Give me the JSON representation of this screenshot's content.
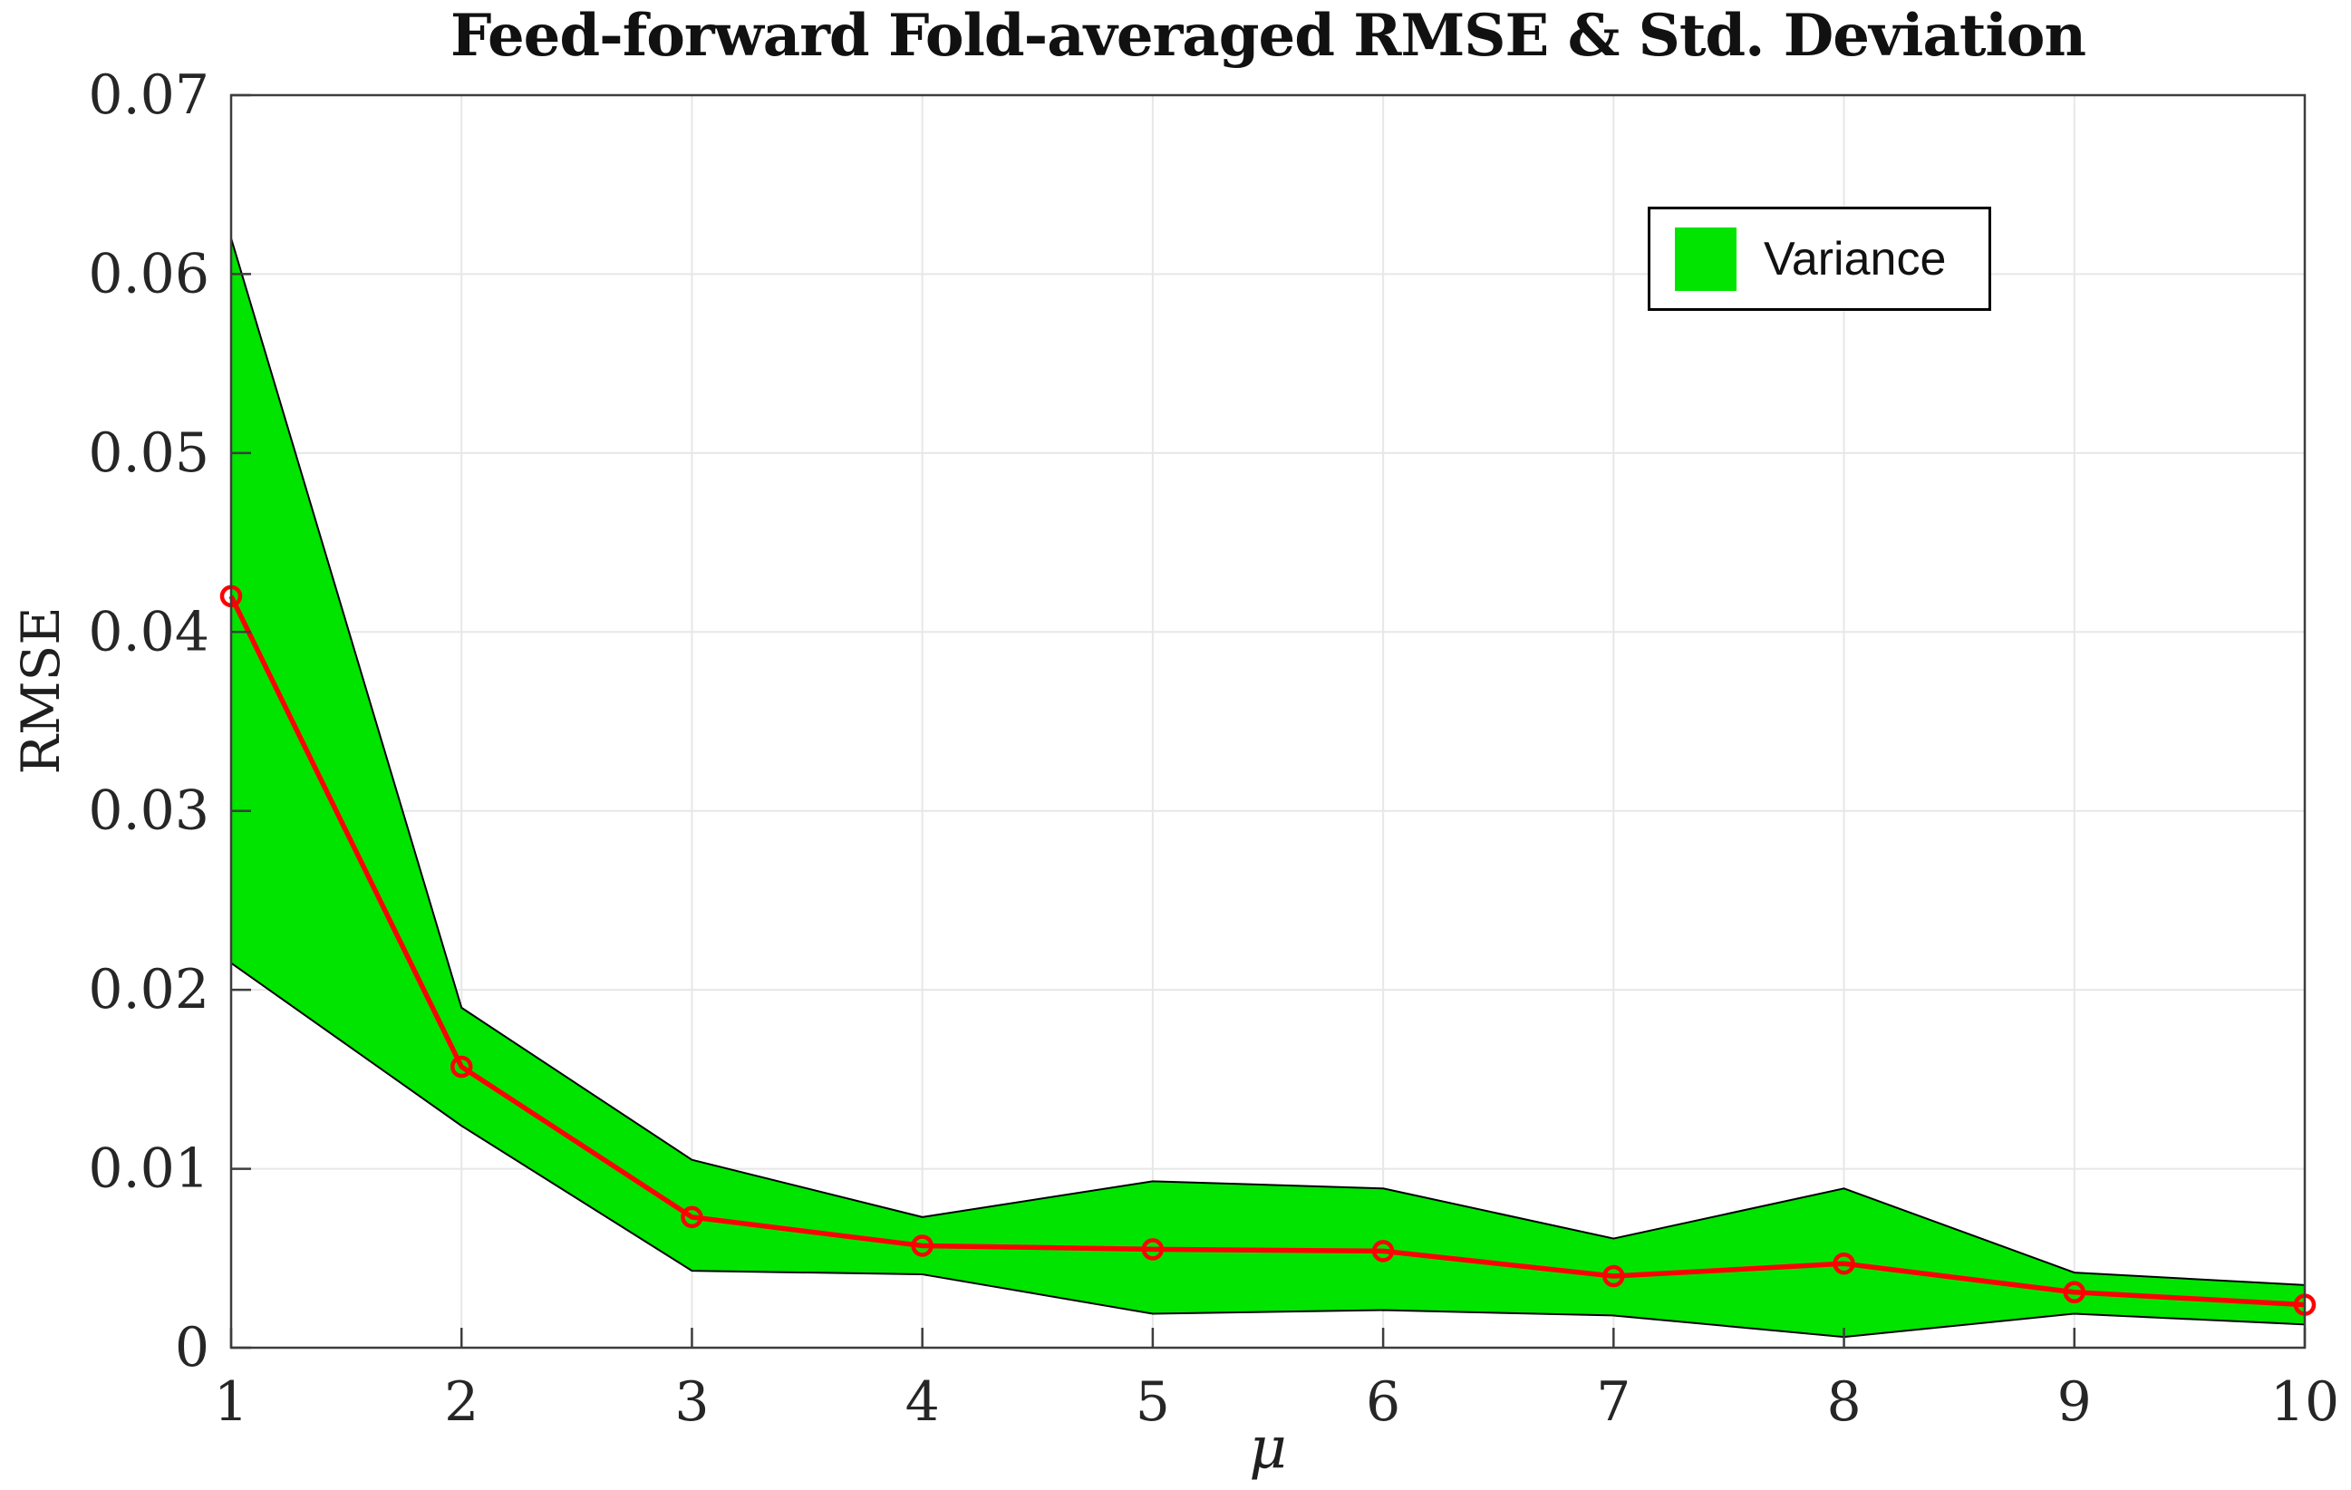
{
  "title": "Feed-forward Fold-averaged RMSE & Std. Deviation",
  "legend": {
    "position": "top-right",
    "items": [
      {
        "label": "Variance",
        "swatch_color": "#00e400"
      }
    ]
  },
  "axes": {
    "x": {
      "label": "μ",
      "min": 1,
      "max": 10,
      "tick_values": [
        1,
        2,
        3,
        4,
        5,
        6,
        7,
        8,
        9,
        10
      ],
      "tick_labels": [
        "1",
        "2",
        "3",
        "4",
        "5",
        "6",
        "7",
        "8",
        "9",
        "10"
      ]
    },
    "y": {
      "label": "RMSE",
      "min": 0,
      "max": 0.07,
      "tick_values": [
        0,
        0.01,
        0.02,
        0.03,
        0.04,
        0.05,
        0.06,
        0.07
      ],
      "tick_labels": [
        "0",
        "0.01",
        "0.02",
        "0.03",
        "0.04",
        "0.05",
        "0.06",
        "0.07"
      ]
    }
  },
  "colors": {
    "band_fill": "#00e400",
    "band_edge": "#000000",
    "line": "#ff0000",
    "marker": "#ff0000",
    "grid": "#e7e7e7",
    "axis_box": "#3d3d3d",
    "tick_text": "#262626",
    "background": "#ffffff"
  },
  "chart_data": {
    "type": "area",
    "title": "Feed-forward Fold-averaged RMSE & Std. Deviation",
    "xlabel": "μ",
    "ylabel": "RMSE",
    "xlim": [
      1,
      10
    ],
    "ylim": [
      0,
      0.07
    ],
    "grid": true,
    "legend_position": "top-right",
    "x": [
      1,
      2,
      3,
      4,
      5,
      6,
      7,
      8,
      9,
      10
    ],
    "series": [
      {
        "name": "Mean RMSE",
        "type": "line",
        "color": "#ff0000",
        "marker": "circle",
        "values": [
          0.042,
          0.0157,
          0.0073,
          0.0057,
          0.0055,
          0.0054,
          0.004,
          0.0047,
          0.0031,
          0.0024
        ]
      },
      {
        "name": "Variance",
        "type": "band",
        "color": "#00e400",
        "upper": [
          0.062,
          0.019,
          0.0105,
          0.0073,
          0.0093,
          0.0089,
          0.0061,
          0.0089,
          0.0042,
          0.0035
        ],
        "lower": [
          0.0215,
          0.0124,
          0.0043,
          0.0041,
          0.0019,
          0.0021,
          0.0018,
          0.0006,
          0.0019,
          0.0013
        ]
      }
    ]
  }
}
